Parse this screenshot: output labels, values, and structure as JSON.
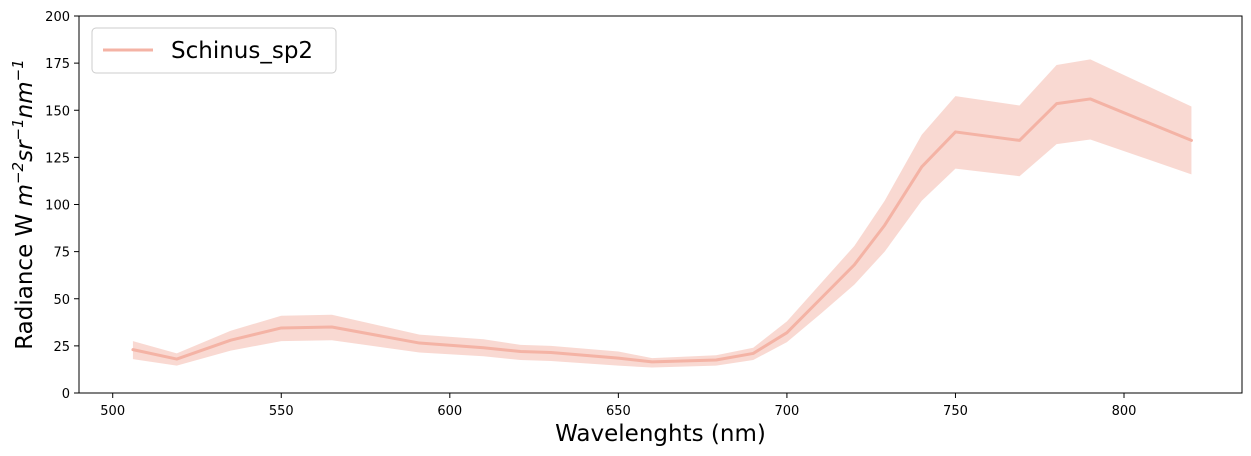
{
  "chart_data": {
    "type": "line",
    "title": "",
    "xlabel": "Wavelenghts (nm)",
    "ylabel_parts": [
      "Radiance W ",
      "m",
      "−2",
      "sr",
      "−1",
      "nm",
      "−1"
    ],
    "xlim": [
      490,
      835
    ],
    "ylim": [
      0,
      200
    ],
    "xticks": [
      500,
      550,
      600,
      650,
      700,
      750,
      800
    ],
    "yticks": [
      0,
      25,
      50,
      75,
      100,
      125,
      150,
      175,
      200
    ],
    "grid": false,
    "legend_position": "top-left",
    "series": [
      {
        "name": "Schinus_sp2",
        "color": "#f4b3a5",
        "band_color": "#f4b3a5",
        "x": [
          506,
          519,
          535,
          550,
          565,
          591,
          610,
          621,
          630,
          650,
          660,
          679,
          690,
          700,
          710,
          720,
          729,
          740,
          750,
          769,
          780,
          790,
          820
        ],
        "y": [
          23,
          18,
          28,
          34.5,
          35,
          26.5,
          24,
          22,
          21.5,
          18.5,
          16.5,
          17.5,
          21,
          32,
          50,
          68,
          89,
          120,
          138.5,
          134,
          153.5,
          156,
          134
        ],
        "lower": [
          18,
          14.5,
          22.5,
          27.5,
          28,
          21.5,
          19.5,
          17.5,
          17,
          14.5,
          13.5,
          14.5,
          17.5,
          27,
          42,
          57.5,
          75,
          102,
          119,
          115,
          132,
          134.5,
          116
        ],
        "upper": [
          27.5,
          21,
          33,
          41,
          41.5,
          31,
          28.5,
          25.5,
          25,
          22,
          18.5,
          20,
          24,
          38,
          58,
          78,
          102,
          137,
          157.5,
          152.5,
          174,
          177,
          152
        ]
      }
    ]
  }
}
